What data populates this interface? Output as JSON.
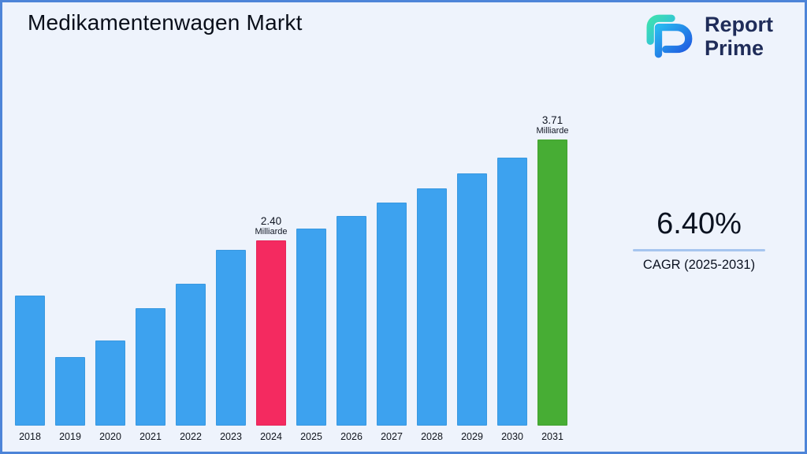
{
  "title": "Medikamentenwagen Markt",
  "logo": {
    "line1": "Report",
    "line2": "Prime"
  },
  "cagr": {
    "value": "6.40%",
    "label": "CAGR (2025-2031)"
  },
  "chart_data": {
    "type": "bar",
    "title": "Medikamentenwagen Markt",
    "unit": "Milliarde",
    "categories": [
      "2018",
      "2019",
      "2020",
      "2021",
      "2022",
      "2023",
      "2024",
      "2025",
      "2026",
      "2027",
      "2028",
      "2029",
      "2030",
      "2031"
    ],
    "values": [
      1.69,
      0.89,
      1.1,
      1.52,
      1.84,
      2.28,
      2.4,
      2.55,
      2.72,
      2.89,
      3.08,
      3.27,
      3.48,
      3.71
    ],
    "ylim": [
      0,
      4
    ],
    "grid": false,
    "legend": false,
    "annotations": [
      {
        "category": "2024",
        "value_label": "2.40",
        "unit_label": "Milliarde"
      },
      {
        "category": "2031",
        "value_label": "3.71",
        "unit_label": "Milliarde"
      }
    ],
    "colors": {
      "default": "#3da2ef",
      "highlights": {
        "2024": "#f42a60",
        "2031": "#47ad34"
      }
    }
  }
}
